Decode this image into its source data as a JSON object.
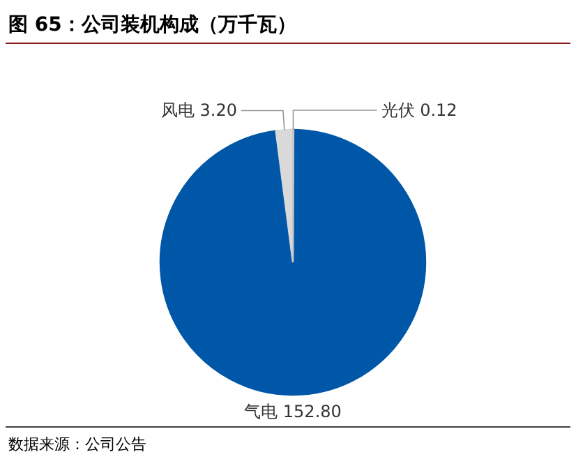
{
  "chart_data": {
    "type": "pie",
    "title": "图 65：公司装机构成（万千瓦）",
    "categories": [
      "光伏",
      "气电",
      "风电"
    ],
    "values": [
      0.12,
      152.8,
      3.2
    ],
    "value_labels": [
      "0.12",
      "152.80",
      "3.20"
    ],
    "colors": [
      "#c8c8c8",
      "#0057a8",
      "#d9d9d9"
    ],
    "annotations": [
      "数据来源：公司公告"
    ]
  }
}
